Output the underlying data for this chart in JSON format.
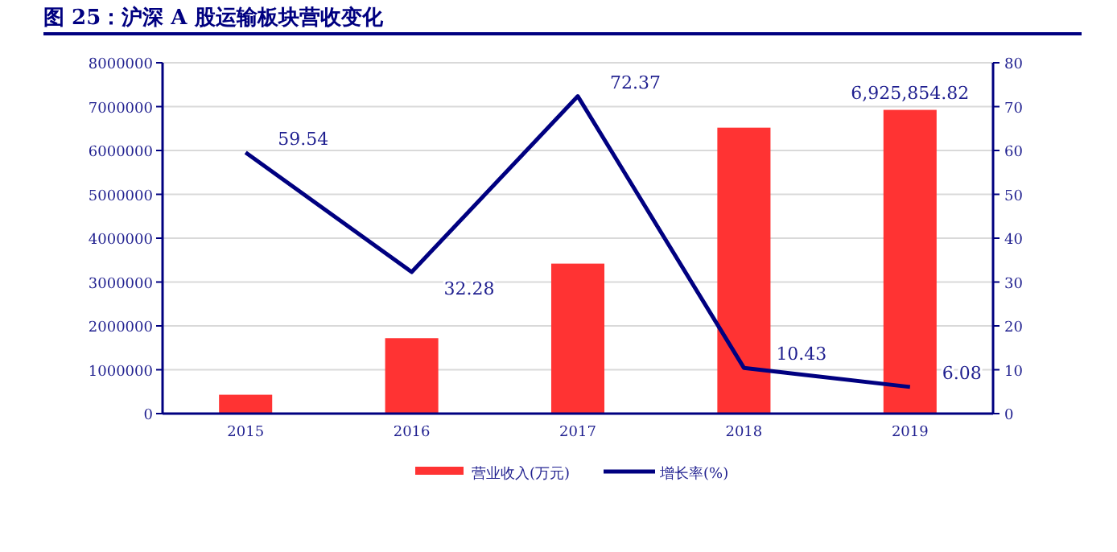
{
  "chart_data": {
    "type": "bar",
    "title": "图 25：沪深 A 股运输板块营收变化",
    "categories": [
      "2015",
      "2016",
      "2017",
      "2018",
      "2019"
    ],
    "series": [
      {
        "name": "营业收入(万元)",
        "color": "#ff3333",
        "values": [
          430000,
          1720000,
          3420000,
          6520000,
          6925854.82
        ],
        "value_labels": [
          null,
          null,
          null,
          null,
          "6,925,854.82"
        ]
      },
      {
        "name": "增长率(%)",
        "type": "line",
        "axis": "y2",
        "color": "#000080",
        "values": [
          59.54,
          32.28,
          72.37,
          10.43,
          6.08
        ],
        "value_labels": [
          "59.54",
          "32.28",
          "72.37",
          "10.43",
          "6.08"
        ]
      }
    ],
    "ylim": [
      0,
      8000000
    ],
    "yticks": [
      0,
      1000000,
      2000000,
      3000000,
      4000000,
      5000000,
      6000000,
      7000000,
      8000000
    ],
    "y2lim": [
      0,
      80
    ],
    "y2ticks": [
      0,
      10,
      20,
      30,
      40,
      50,
      60,
      70,
      80
    ],
    "grid": "y",
    "legend": "bottom"
  }
}
